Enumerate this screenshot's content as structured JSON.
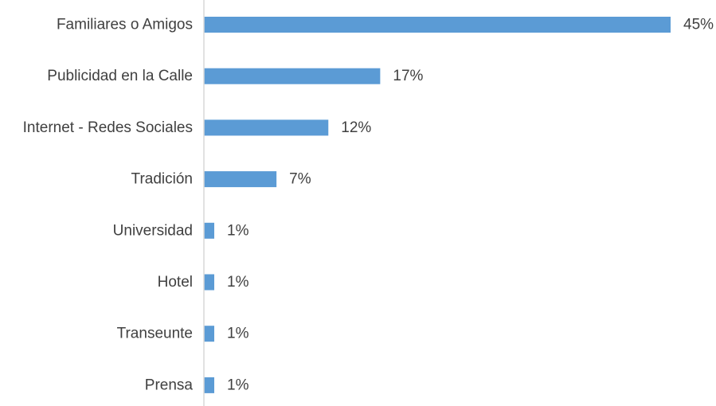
{
  "chart_data": {
    "type": "bar",
    "orientation": "horizontal",
    "categories": [
      "Familiares o Amigos",
      "Publicidad en la Calle",
      "Internet - Redes Sociales",
      "Tradición",
      "Universidad",
      "Hotel",
      "Transeunte",
      "Prensa"
    ],
    "values": [
      45,
      17,
      12,
      7,
      1,
      1,
      1,
      1
    ],
    "value_labels": [
      "45%",
      "17%",
      "12%",
      "7%",
      "1%",
      "1%",
      "1%",
      "1%"
    ],
    "unit": "%",
    "xlim": [
      0,
      45
    ],
    "grid": false,
    "legend": "none",
    "colors": {
      "bar": "#5b9bd5",
      "axis": "#d9d9d9",
      "text": "#404040"
    }
  }
}
